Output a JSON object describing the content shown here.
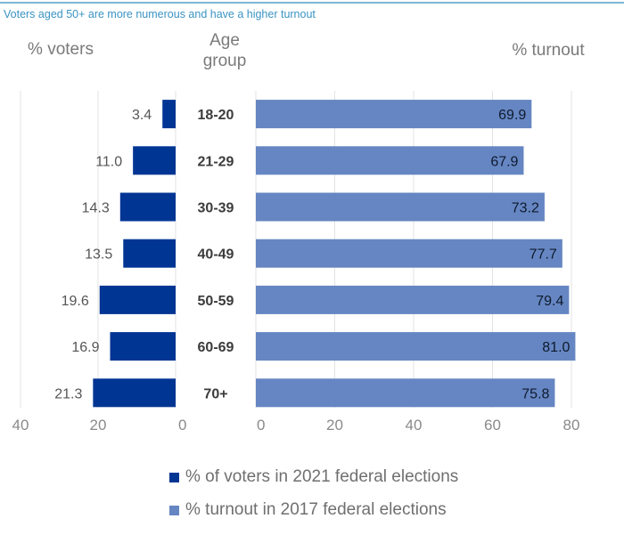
{
  "chart_data": {
    "type": "bar",
    "orientation": "horizontal",
    "title": "Voters aged 50+ are more numerous and have a higher turnout",
    "categories": [
      "18-20",
      "21-29",
      "30-39",
      "40-49",
      "50-59",
      "60-69",
      "70+"
    ],
    "category_header": "Age group",
    "panels": [
      {
        "name": "% voters",
        "direction": "leftward",
        "xlim": [
          0,
          40
        ],
        "ticks": [
          "40",
          "20",
          "0"
        ],
        "tick_values": [
          40,
          20,
          0
        ],
        "grid": true
      },
      {
        "name": "% turnout",
        "direction": "rightward",
        "xlim": [
          0,
          80
        ],
        "ticks": [
          "0",
          "20",
          "40",
          "60",
          "80"
        ],
        "tick_values": [
          0,
          20,
          40,
          60,
          80
        ],
        "grid": true
      }
    ],
    "series": [
      {
        "name": "% of voters in 2021 federal elections",
        "panel": 0,
        "color": "#003594",
        "values": [
          3.4,
          11.0,
          14.3,
          13.5,
          19.6,
          16.9,
          21.3
        ],
        "labels": [
          "3.4",
          "11.0",
          "14.3",
          "13.5",
          "19.6",
          "16.9",
          "21.3"
        ]
      },
      {
        "name": "% turnout in 2017 federal elections",
        "panel": 1,
        "color": "#6586c2",
        "values": [
          69.9,
          67.9,
          73.2,
          77.7,
          79.4,
          81.0,
          75.8
        ],
        "labels": [
          "69.9",
          "67.9",
          "73.2",
          "77.7",
          "79.4",
          "81.0",
          "75.8"
        ]
      }
    ],
    "legend_position": "bottom-center"
  },
  "headers": {
    "left": "% voters",
    "middle_line1": "Age",
    "middle_line2": "group",
    "right": "% turnout"
  },
  "legend": [
    {
      "label": "% of voters in 2021 federal elections",
      "color": "#003594"
    },
    {
      "label": "% turnout in 2017 federal elections",
      "color": "#6586c2"
    }
  ]
}
